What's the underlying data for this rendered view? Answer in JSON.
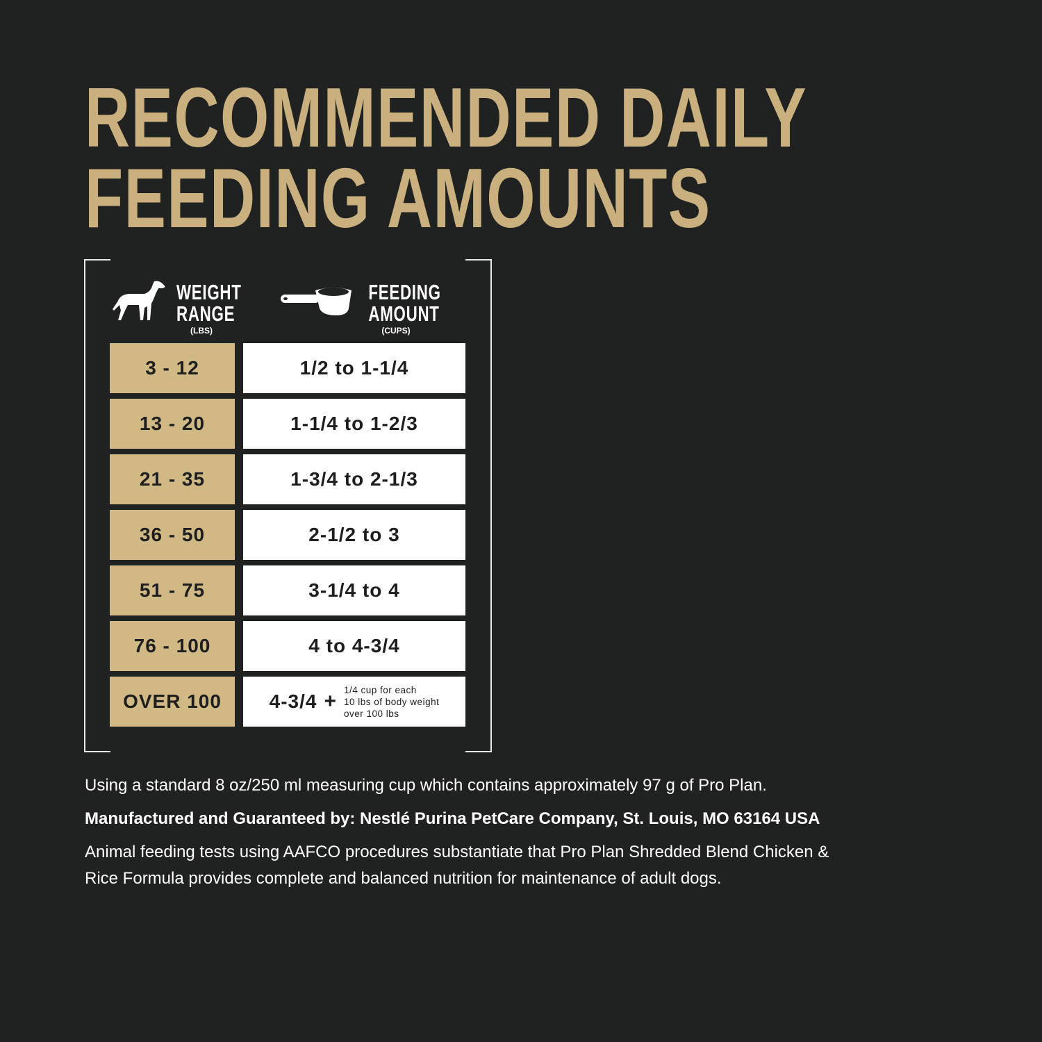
{
  "title": {
    "line1": "RECOMMENDED DAILY",
    "line2": "FEEDING AMOUNTS"
  },
  "colors": {
    "background": "#202221",
    "gold": "#d0b985",
    "title_gold": "#c9b07e",
    "white": "#ffffff"
  },
  "table": {
    "weight_header": {
      "icon": "dog-icon",
      "line1": "WEIGHT",
      "line2": "RANGE",
      "unit": "(LBS)"
    },
    "feeding_header": {
      "icon": "measuring-cup-icon",
      "line1": "FEEDING",
      "line2": "AMOUNT",
      "unit": "(CUPS)"
    },
    "rows": [
      {
        "weight": "3 - 12",
        "amount": "1/2 to 1-1/4"
      },
      {
        "weight": "13 - 20",
        "amount": "1-1/4 to 1-2/3"
      },
      {
        "weight": "21 - 35",
        "amount": "1-3/4 to 2-1/3"
      },
      {
        "weight": "36 - 50",
        "amount": "2-1/2 to 3"
      },
      {
        "weight": "51 - 75",
        "amount": "3-1/4 to 4"
      },
      {
        "weight": "76 - 100",
        "amount": "4 to 4-3/4"
      },
      {
        "weight": "OVER 100",
        "amount": "4-3/4",
        "plus": "+",
        "note_lines": [
          "1/4 cup for each",
          "10 lbs of body weight",
          "over 100 lbs"
        ]
      }
    ]
  },
  "footer": {
    "measure_note": "Using a standard 8 oz/250 ml measuring cup which contains approximately 97 g of Pro Plan.",
    "manufacturer": "Manufactured and Guaranteed by: Nestlé Purina PetCare Company, St. Louis, MO 63164 USA",
    "aafco_line1": "Animal feeding tests using AAFCO procedures substantiate that Pro Plan Shredded Blend Chicken &",
    "aafco_line2": "Rice Formula provides complete and balanced nutrition for maintenance of adult dogs."
  }
}
